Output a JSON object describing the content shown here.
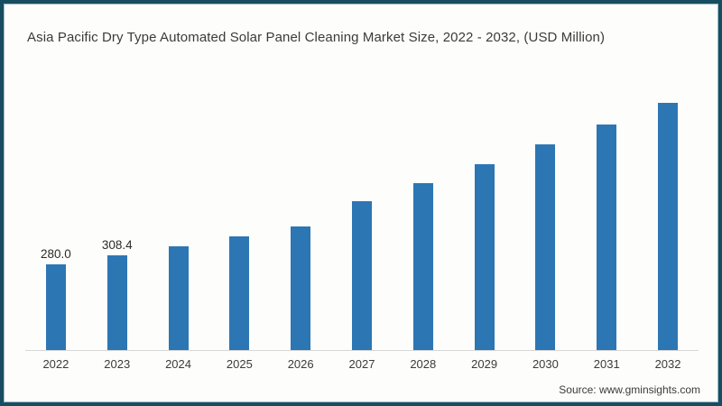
{
  "title": "Asia Pacific Dry Type Automated Solar Panel Cleaning Market Size, 2022 - 2032, (USD Million)",
  "source": "Source: www.gminsights.com",
  "colors": {
    "bar": "#2d76b4",
    "frame_border": "#164e60",
    "frame_inner_edge": "#9db9c6",
    "axis_line": "#d8d8d8",
    "title_text": "#3b3b3b",
    "value_label_text": "#2b2b2b",
    "background": "#fdfdfb"
  },
  "chart_data": {
    "type": "bar",
    "title": "Asia Pacific Dry Type Automated Solar Panel Cleaning Market Size, 2022 - 2032, (USD Million)",
    "xlabel": "",
    "ylabel": "USD Million",
    "categories": [
      "2022",
      "2023",
      "2024",
      "2025",
      "2026",
      "2027",
      "2028",
      "2029",
      "2030",
      "2031",
      "2032"
    ],
    "values": [
      280.0,
      308.4,
      340,
      372,
      405,
      488,
      546,
      608,
      672,
      738,
      808
    ],
    "data_labels": [
      "280.0",
      "308.4",
      "",
      "",
      "",
      "",
      "",
      "",
      "",
      "",
      ""
    ],
    "ylim": [
      0,
      860
    ],
    "grid": false,
    "legend": false,
    "yaxis_visible": false,
    "note": "values for 2024-2032 estimated from bar heights; only 2022 and 2023 carry printed labels"
  }
}
